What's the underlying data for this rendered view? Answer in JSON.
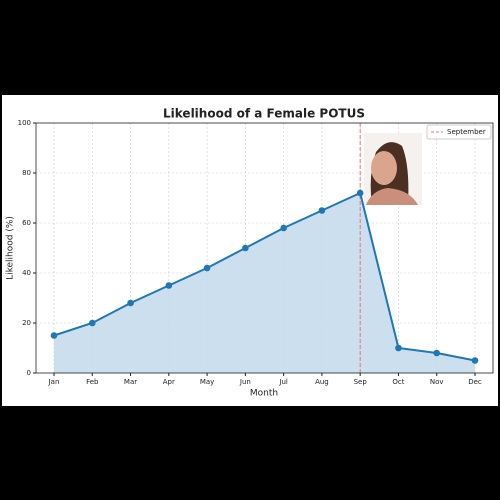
{
  "chart_data": {
    "type": "line",
    "title": "Likelihood of a Female POTUS",
    "x_label": "Month",
    "y_label": "Likelihood (%)",
    "categories": [
      "Jan",
      "Feb",
      "Mar",
      "Apr",
      "May",
      "Jun",
      "Jul",
      "Aug",
      "Sep",
      "Oct",
      "Nov",
      "Dec"
    ],
    "values": [
      15,
      20,
      28,
      35,
      42,
      50,
      58,
      65,
      72,
      10,
      8,
      5
    ],
    "color": "#1f77b4",
    "fill_color": "#c6dcec",
    "ylim": [
      0,
      100
    ],
    "yticks": [
      0,
      20,
      40,
      60,
      80,
      100
    ],
    "grid": true,
    "vline": {
      "category": "Sep",
      "label": "September",
      "color": "#e8737a"
    },
    "legend": "upper right"
  }
}
